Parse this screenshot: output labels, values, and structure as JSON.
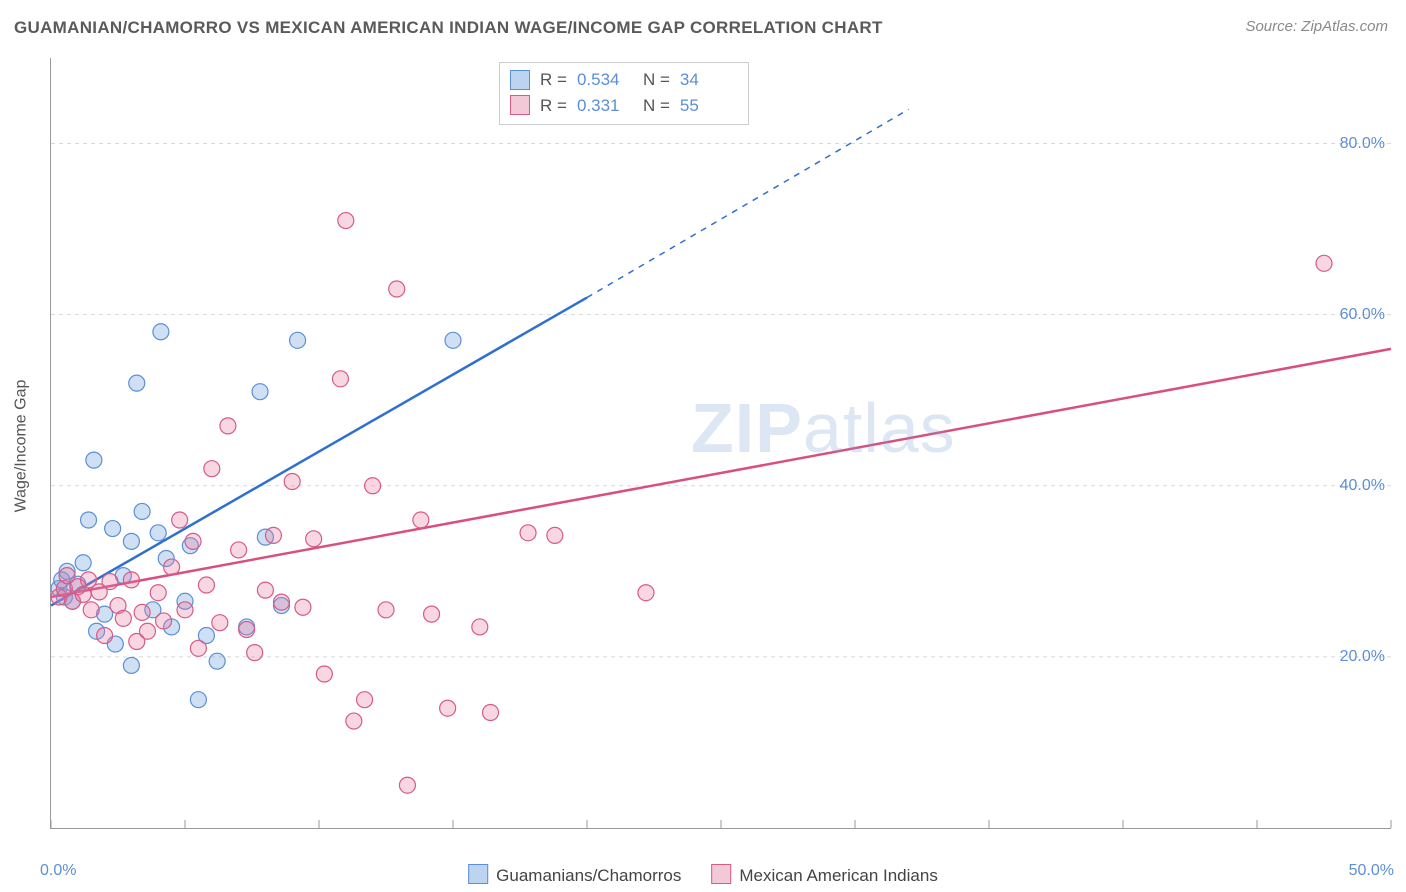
{
  "title": "GUAMANIAN/CHAMORRO VS MEXICAN AMERICAN INDIAN WAGE/INCOME GAP CORRELATION CHART",
  "source": "Source: ZipAtlas.com",
  "ylabel": "Wage/Income Gap",
  "watermark_bold": "ZIP",
  "watermark_rest": "atlas",
  "chart": {
    "type": "scatter",
    "xlim": [
      0,
      50
    ],
    "ylim": [
      0,
      90
    ],
    "x_ticks": [
      0,
      5,
      10,
      15,
      20,
      25,
      30,
      35,
      40,
      45,
      50
    ],
    "x_tick_labels_visible": {
      "0": "0.0%",
      "50": "50.0%"
    },
    "y_ticks": [
      20,
      40,
      60,
      80
    ],
    "y_tick_labels": [
      "20.0%",
      "40.0%",
      "60.0%",
      "80.0%"
    ],
    "grid_color": "#d8d8d8",
    "axis_color": "#999999",
    "background_color": "#ffffff",
    "marker_radius": 8,
    "marker_stroke_width": 1.2,
    "series": [
      {
        "name": "Guamanians/Chamorros",
        "fill": "rgba(120,167,224,0.35)",
        "stroke": "#5b8fd6",
        "swatch_fill": "#bcd4ef",
        "swatch_border": "#5b8fd6",
        "R": "0.534",
        "N": "34",
        "trend": {
          "x1": 0,
          "y1": 26,
          "x2_solid": 20,
          "y2_solid": 62,
          "x2_dash": 32,
          "y2_dash": 84,
          "color": "#2f6fd0",
          "width": 2.5
        },
        "points": [
          [
            0.3,
            28
          ],
          [
            0.4,
            29
          ],
          [
            0.5,
            27
          ],
          [
            0.6,
            30
          ],
          [
            0.8,
            26.5
          ],
          [
            1,
            28.5
          ],
          [
            1.2,
            31
          ],
          [
            1.4,
            36
          ],
          [
            1.6,
            43
          ],
          [
            1.7,
            23
          ],
          [
            2,
            25
          ],
          [
            2.3,
            35
          ],
          [
            2.4,
            21.5
          ],
          [
            2.7,
            29.5
          ],
          [
            3,
            33.5
          ],
          [
            3,
            19
          ],
          [
            3.2,
            52
          ],
          [
            3.4,
            37
          ],
          [
            3.8,
            25.5
          ],
          [
            4,
            34.5
          ],
          [
            4.1,
            58
          ],
          [
            4.3,
            31.5
          ],
          [
            4.5,
            23.5
          ],
          [
            5,
            26.5
          ],
          [
            5.2,
            33
          ],
          [
            5.5,
            15
          ],
          [
            5.8,
            22.5
          ],
          [
            6.2,
            19.5
          ],
          [
            7.3,
            23.5
          ],
          [
            7.8,
            51
          ],
          [
            8,
            34
          ],
          [
            8.6,
            26
          ],
          [
            9.2,
            57
          ],
          [
            15,
            57
          ]
        ]
      },
      {
        "name": "Mexican American Indians",
        "fill": "rgba(232,120,160,0.30)",
        "stroke": "#d65b88",
        "swatch_fill": "#f3c9d8",
        "swatch_border": "#d65b88",
        "R": "0.331",
        "N": "55",
        "trend": {
          "x1": 0,
          "y1": 27,
          "x2_solid": 50,
          "y2_solid": 56,
          "x2_dash": 50,
          "y2_dash": 56,
          "color": "#d94f7e",
          "width": 2.5
        },
        "points": [
          [
            0.3,
            27
          ],
          [
            0.5,
            28
          ],
          [
            0.6,
            29.5
          ],
          [
            0.8,
            26.5
          ],
          [
            1,
            28.2
          ],
          [
            1.2,
            27.3
          ],
          [
            1.4,
            29
          ],
          [
            1.5,
            25.5
          ],
          [
            1.8,
            27.6
          ],
          [
            2,
            22.5
          ],
          [
            2.2,
            28.8
          ],
          [
            2.5,
            26
          ],
          [
            2.7,
            24.5
          ],
          [
            3,
            29
          ],
          [
            3.2,
            21.8
          ],
          [
            3.4,
            25.2
          ],
          [
            3.6,
            23
          ],
          [
            4,
            27.5
          ],
          [
            4.2,
            24.2
          ],
          [
            4.5,
            30.5
          ],
          [
            4.8,
            36
          ],
          [
            5,
            25.5
          ],
          [
            5.3,
            33.5
          ],
          [
            5.5,
            21
          ],
          [
            5.8,
            28.4
          ],
          [
            6,
            42
          ],
          [
            6.3,
            24
          ],
          [
            6.6,
            47
          ],
          [
            7,
            32.5
          ],
          [
            7.3,
            23.2
          ],
          [
            7.6,
            20.5
          ],
          [
            8,
            27.8
          ],
          [
            8.3,
            34.2
          ],
          [
            8.6,
            26.4
          ],
          [
            9,
            40.5
          ],
          [
            9.4,
            25.8
          ],
          [
            9.8,
            33.8
          ],
          [
            10.2,
            18
          ],
          [
            10.8,
            52.5
          ],
          [
            11,
            71
          ],
          [
            11.3,
            12.5
          ],
          [
            11.7,
            15
          ],
          [
            12,
            40
          ],
          [
            12.5,
            25.5
          ],
          [
            12.9,
            63
          ],
          [
            13.3,
            5
          ],
          [
            13.8,
            36
          ],
          [
            14.2,
            25
          ],
          [
            14.8,
            14
          ],
          [
            16,
            23.5
          ],
          [
            16.4,
            13.5
          ],
          [
            17.8,
            34.5
          ],
          [
            18.8,
            34.2
          ],
          [
            22.2,
            27.5
          ],
          [
            47.5,
            66
          ]
        ]
      }
    ],
    "legend_bottom": [
      {
        "label": "Guamanians/Chamorros",
        "swatch_fill": "#bcd4ef",
        "swatch_border": "#5b8fd6"
      },
      {
        "label": "Mexican American Indians",
        "swatch_fill": "#f3c9d8",
        "swatch_border": "#d65b88"
      }
    ]
  }
}
